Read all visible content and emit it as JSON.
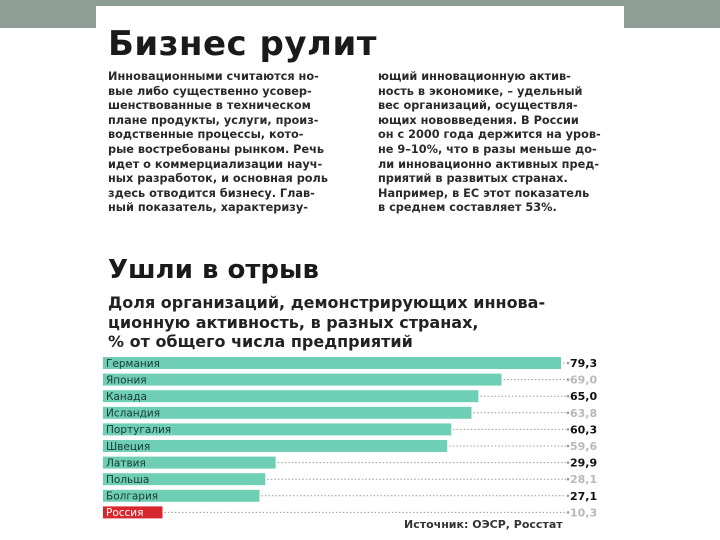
{
  "article": {
    "headline": "Бизнес рулит",
    "col1_lines": [
      "Инновационными считаются но-",
      "вые либо существенно усовер-",
      "шенствованные в техническом",
      "плане продукты, услуги, произ-",
      "водственные процессы, кото-",
      "рые востребованы рынком. Речь",
      "идет о коммерциализации науч-",
      "ных разработок, и основная роль",
      "здесь отводится бизнесу. Глав-",
      "ный показатель, характеризу-"
    ],
    "col2_lines": [
      "ющий инновационную актив-",
      "ность в экономике, – удельный",
      "вес организаций, осуществля-",
      "ющих нововведения. В России",
      "он с 2000 года держится на уров-",
      "не 9–10%, что в разы меньше до-",
      "ли инновационно активных пред-",
      "приятий в развитых странах.",
      "Например, в ЕС этот показатель",
      "в среднем составляет 53%."
    ]
  },
  "chart_data": {
    "type": "bar",
    "orientation": "horizontal",
    "title": "Ушли в отрыв",
    "subtitle_lines": [
      "Доля организаций, демонстрирующих иннова-",
      "ционную активность, в разных странах,",
      "% от общего числа предприятий"
    ],
    "categories": [
      "Германия",
      "Япония",
      "Канада",
      "Исландия",
      "Португалия",
      "Швеция",
      "Латвия",
      "Польша",
      "Болгария",
      "Россия"
    ],
    "values": [
      79.3,
      69.0,
      65.0,
      63.8,
      60.3,
      59.6,
      29.9,
      28.1,
      27.1,
      10.3
    ],
    "value_labels": [
      "79,3",
      "69,0",
      "65,0",
      "63,8",
      "60,3",
      "59,6",
      "29,9",
      "28,1",
      "27,1",
      "10,3"
    ],
    "highlight_labels": [
      true,
      false,
      true,
      false,
      true,
      false,
      true,
      false,
      true,
      false
    ],
    "highlight_category": "Россия",
    "xlim": [
      0,
      79.3
    ],
    "source": "Источник: ОЭСР, Росстат",
    "colors": {
      "bar": "#6ecfb5",
      "highlight_bar": "#d8262f",
      "label_bold": "#111111",
      "label_faint": "#b8b8b8",
      "dots": "#9a9a9a"
    }
  }
}
